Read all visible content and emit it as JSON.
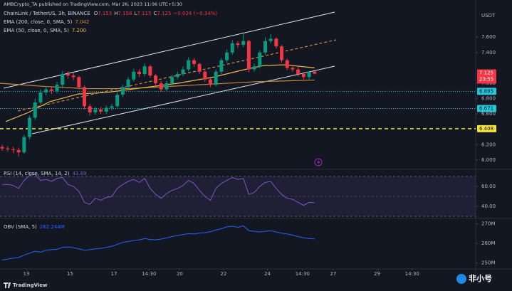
{
  "publisher": "AMBCrypto_TA published on TradingView.com, Mar 26, 2023 11:06 UTC+5:30",
  "footer": "TradingView",
  "watermark": "非小号",
  "chart_data": [
    {
      "type": "candlestick",
      "title": "ChainLink / TetherUS, 3h, BINANCE",
      "ohlc_fields": [
        "O",
        "H",
        "L",
        "C"
      ],
      "change": "−0.024 (−0.34%)",
      "currency": "USDT",
      "countdown": "23:55",
      "up_color": "#089981",
      "down_color": "#f23645",
      "xlim": [
        11.8,
        33.5
      ],
      "xticks": [
        13,
        15,
        17,
        {
          "value": 18.6,
          "label": "14:30"
        },
        20,
        22,
        24,
        {
          "value": 25.6,
          "label": "14:30"
        },
        27,
        29,
        {
          "value": 30.6,
          "label": "14:30"
        }
      ],
      "ylim": [
        5.888,
        8.084
      ],
      "yticks": [
        {
          "value": 6.0,
          "label": "6.000"
        },
        {
          "value": 6.2,
          "label": "6.200"
        },
        {
          "value": 6.6,
          "label": "6.600"
        },
        {
          "value": 6.8,
          "label": "6.800"
        },
        {
          "value": 7.0,
          "label": "7.000"
        },
        {
          "value": 7.4,
          "label": "7.400"
        },
        {
          "value": 7.6,
          "label": "7.600"
        }
      ],
      "x": [
        11.9,
        12.15,
        12.4,
        12.65,
        12.9,
        13.15,
        13.4,
        13.65,
        13.9,
        14.15,
        14.4,
        14.65,
        14.9,
        15.15,
        15.4,
        15.65,
        15.9,
        16.15,
        16.4,
        16.65,
        16.9,
        17.15,
        17.4,
        17.65,
        17.9,
        18.15,
        18.4,
        18.65,
        18.9,
        19.15,
        19.4,
        19.65,
        19.9,
        20.15,
        20.4,
        20.65,
        20.9,
        21.15,
        21.4,
        21.65,
        21.9,
        22.15,
        22.4,
        22.65,
        22.9,
        23.15,
        23.4,
        23.65,
        23.9,
        24.15,
        24.4,
        24.65,
        24.9,
        25.15,
        25.4,
        25.65,
        25.9,
        26.15
      ],
      "open": [
        6.17,
        6.15,
        6.14,
        6.13,
        6.1,
        6.3,
        6.55,
        6.75,
        6.88,
        6.92,
        6.9,
        6.98,
        7.12,
        7.1,
        7.08,
        6.95,
        6.7,
        6.62,
        6.66,
        6.63,
        6.68,
        6.7,
        6.85,
        6.95,
        7.05,
        7.15,
        7.12,
        7.22,
        7.1,
        7.0,
        6.92,
        7.0,
        7.08,
        7.12,
        7.18,
        7.3,
        7.25,
        7.15,
        7.05,
        6.98,
        7.15,
        7.3,
        7.4,
        7.52,
        7.5,
        7.55,
        7.18,
        7.22,
        7.4,
        7.55,
        7.58,
        7.48,
        7.3,
        7.2,
        7.18,
        7.12,
        7.08,
        7.153
      ],
      "high": [
        6.2,
        6.18,
        6.17,
        6.16,
        6.33,
        6.58,
        6.8,
        6.92,
        6.96,
        6.95,
        7.02,
        7.16,
        7.15,
        7.13,
        7.1,
        6.97,
        6.73,
        6.69,
        6.69,
        6.71,
        6.73,
        6.88,
        6.98,
        7.08,
        7.19,
        7.18,
        7.26,
        7.24,
        7.12,
        7.03,
        7.03,
        7.11,
        7.15,
        7.22,
        7.34,
        7.33,
        7.27,
        7.17,
        7.07,
        7.18,
        7.33,
        7.44,
        7.56,
        7.55,
        7.64,
        7.57,
        7.26,
        7.43,
        7.6,
        7.64,
        7.6,
        7.5,
        7.32,
        7.23,
        7.21,
        7.15,
        7.16,
        7.158
      ],
      "low": [
        6.12,
        6.11,
        6.09,
        6.05,
        6.08,
        6.27,
        6.52,
        6.72,
        6.84,
        6.86,
        6.87,
        6.95,
        7.06,
        7.04,
        6.92,
        6.66,
        6.58,
        6.59,
        6.6,
        6.6,
        6.65,
        6.68,
        6.82,
        6.92,
        7.02,
        7.08,
        7.09,
        7.07,
        6.97,
        6.89,
        6.9,
        6.97,
        7.05,
        7.09,
        7.15,
        7.21,
        7.12,
        7.02,
        6.95,
        6.96,
        7.12,
        7.27,
        7.37,
        7.46,
        7.47,
        7.14,
        7.15,
        7.19,
        7.37,
        7.52,
        7.45,
        7.27,
        7.17,
        7.15,
        7.09,
        7.05,
        7.05,
        7.115
      ],
      "close": [
        6.15,
        6.14,
        6.13,
        6.1,
        6.3,
        6.55,
        6.75,
        6.88,
        6.92,
        6.9,
        6.98,
        7.12,
        7.1,
        7.08,
        6.95,
        6.7,
        6.62,
        6.66,
        6.63,
        6.68,
        6.7,
        6.85,
        6.95,
        7.05,
        7.15,
        7.12,
        7.22,
        7.1,
        7.0,
        6.92,
        7.0,
        7.08,
        7.12,
        7.18,
        7.3,
        7.25,
        7.15,
        7.05,
        6.98,
        7.15,
        7.3,
        7.4,
        7.52,
        7.5,
        7.55,
        7.18,
        7.22,
        7.4,
        7.55,
        7.58,
        7.48,
        7.3,
        7.2,
        7.18,
        7.12,
        7.08,
        7.149,
        7.125
      ],
      "overlays": [
        {
          "name": "EMA (200, close, 0, SMA, 5)",
          "color": "#c98b3d",
          "x": [
            11.8,
            13.75,
            15.7,
            17.65,
            19.6,
            21.54,
            23.49,
            24.79,
            26.15
          ],
          "values": [
            7.0,
            6.96,
            6.93,
            6.93,
            6.96,
            6.99,
            7.02,
            7.03,
            7.042
          ]
        },
        {
          "name": "EMA (50, close, 0, SMA, 5)",
          "color": "#f2b84b",
          "x": [
            12.06,
            13.1,
            14.07,
            15.37,
            16.67,
            18.29,
            19.92,
            21.54,
            22.84,
            23.81,
            24.79,
            26.15
          ],
          "values": [
            6.5,
            6.62,
            6.76,
            6.86,
            6.88,
            6.94,
            7.0,
            7.08,
            7.17,
            7.23,
            7.24,
            7.2
          ],
          "value_label": "7.200"
        }
      ],
      "levels": [
        {
          "value": 6.895,
          "color": "#26c6da"
        },
        {
          "value": 6.671,
          "color": "#26c6da"
        },
        {
          "value": 6.408,
          "color": "#f5e13b"
        }
      ]
    },
    {
      "type": "line",
      "title": "RSI (14, close, SMA, 14, 2)",
      "color": "#7e57c2",
      "ylim": [
        28.6,
        75.7
      ],
      "yticks": [
        {
          "value": 60,
          "label": "60.00"
        },
        {
          "value": 40,
          "label": "40.00"
        }
      ],
      "band": [
        30,
        70
      ],
      "midline": 50,
      "values": [
        62,
        62,
        61,
        58,
        66,
        71,
        72,
        66,
        67,
        65,
        68,
        69,
        62,
        60,
        55,
        44,
        42,
        48,
        46,
        49,
        50,
        58,
        62,
        65,
        67,
        64,
        68,
        58,
        52,
        48,
        53,
        56,
        58,
        61,
        66,
        63,
        56,
        50,
        46,
        58,
        63,
        66,
        69,
        67,
        68,
        52,
        54,
        60,
        64,
        65,
        58,
        52,
        48,
        47,
        44,
        41,
        44,
        43.69
      ]
    },
    {
      "type": "line",
      "title": "OBV (SMA, 5)",
      "color": "#2962ff",
      "ylim": [
        247.3,
        272.4
      ],
      "yticks": [
        {
          "value": 270,
          "label": "270M"
        },
        {
          "value": 260,
          "label": "260M"
        },
        {
          "value": 250,
          "label": "250M"
        }
      ],
      "values": [
        251.5,
        252,
        252.5,
        252.8,
        254,
        255,
        256,
        255.5,
        256.5,
        256.8,
        257,
        258,
        258.2,
        257.8,
        257.2,
        256.5,
        256.8,
        257.2,
        257.5,
        258,
        258.5,
        259.5,
        260.5,
        261,
        261.5,
        261.8,
        262.5,
        262,
        261.8,
        262.2,
        262.8,
        263.5,
        264,
        264.5,
        265,
        264.8,
        265.2,
        265.5,
        266,
        266.8,
        267.5,
        268.5,
        268.8,
        268.2,
        269,
        266.5,
        266.2,
        265.8,
        266.2,
        266.5,
        265.8,
        265.2,
        264.8,
        264.2,
        263.5,
        262.8,
        262.5,
        262.244
      ],
      "value_label": "262.244M"
    }
  ]
}
